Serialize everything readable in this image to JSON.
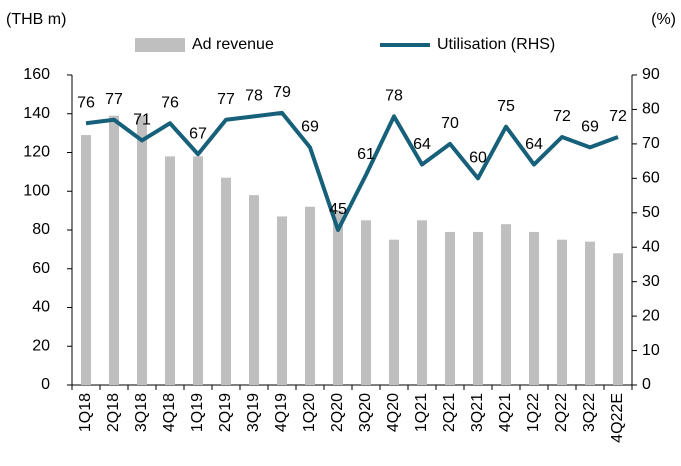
{
  "chart_data": {
    "type": "combo",
    "y_axis_label": "(THB m)",
    "y2_axis_label": "(%)",
    "categories": [
      "1Q18",
      "2Q18",
      "3Q18",
      "4Q18",
      "1Q19",
      "2Q19",
      "3Q19",
      "4Q19",
      "1Q20",
      "2Q20",
      "3Q20",
      "4Q20",
      "1Q21",
      "2Q21",
      "3Q21",
      "4Q21",
      "1Q22",
      "2Q22",
      "3Q22",
      "4Q22E"
    ],
    "series": [
      {
        "name": "Ad revenue",
        "type": "bar",
        "color": "#bfbfbf",
        "values": [
          129,
          139,
          139,
          118,
          118,
          107,
          98,
          87,
          92,
          90,
          85,
          75,
          85,
          79,
          79,
          83,
          79,
          75,
          74,
          68
        ]
      },
      {
        "name": "Utilisation (RHS)",
        "type": "line",
        "axis": "y2",
        "color": "#17607a",
        "values": [
          76,
          77,
          71,
          76,
          67,
          77,
          78,
          79,
          69,
          45,
          61,
          78,
          64,
          70,
          60,
          75,
          64,
          72,
          69,
          72
        ]
      }
    ],
    "ylim": [
      0,
      160
    ],
    "yticks": [
      0,
      20,
      40,
      60,
      80,
      100,
      120,
      140,
      160
    ],
    "y2lim": [
      0,
      90
    ],
    "y2ticks": [
      0,
      10,
      20,
      30,
      40,
      50,
      60,
      70,
      80,
      90
    ],
    "legend": "top"
  }
}
